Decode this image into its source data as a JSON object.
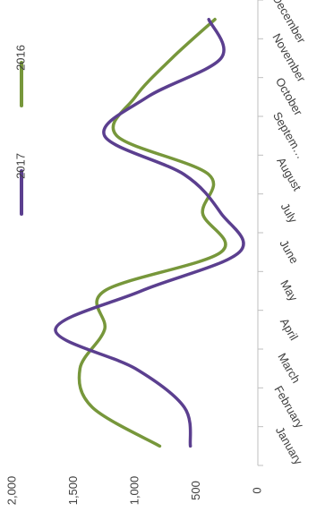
{
  "chart_data": {
    "type": "line",
    "smooth": true,
    "orientation": "rotated-90-clockwise",
    "categories": [
      "January",
      "February",
      "March",
      "April",
      "May",
      "June",
      "July",
      "August",
      "Septem…",
      "October",
      "November",
      "December"
    ],
    "series": [
      {
        "name": "2017",
        "color": "#5b3f8f",
        "values": [
          550,
          600,
          1000,
          1650,
          950,
          150,
          300,
          600,
          1250,
          900,
          300,
          400
        ]
      },
      {
        "name": "2016",
        "color": "#77973b",
        "values": [
          800,
          1350,
          1450,
          1250,
          1250,
          300,
          450,
          400,
          1150,
          1000,
          700,
          350
        ]
      }
    ],
    "value_ticks": [
      "0",
      "500",
      "1,000",
      "1,500",
      "2,000"
    ],
    "value_tick_values": [
      0,
      500,
      1000,
      1500,
      2000
    ],
    "ylim": [
      0,
      2000
    ],
    "title": "",
    "xlabel": "",
    "ylabel": "",
    "grid": false,
    "legend": {
      "placement": "top",
      "entries": [
        "2017",
        "2016"
      ]
    }
  }
}
